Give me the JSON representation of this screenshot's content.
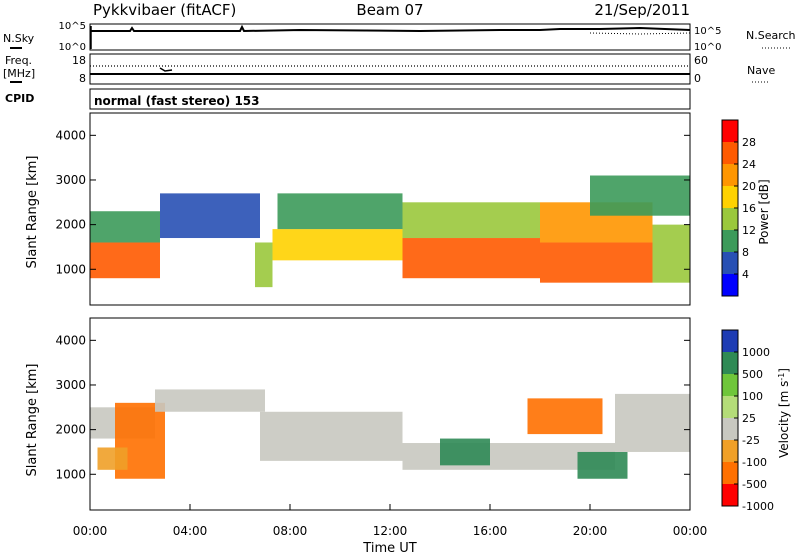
{
  "header": {
    "station": "Pykkvibaer (fitACF)",
    "beam": "Beam 07",
    "date": "21/Sep/2011"
  },
  "top_panels": {
    "nsky_label": "N.Sky",
    "nsky_ticks": [
      "10^5",
      "10^0"
    ],
    "nsearch_label": "N.Search",
    "nsearch_ticks": [
      "10^5",
      "10^0"
    ],
    "freq_label_1": "Freq.",
    "freq_label_2": "[MHz]",
    "freq_ticks": [
      "18",
      "8"
    ],
    "nave_label": "Nave",
    "nave_ticks": [
      "60",
      "0"
    ],
    "cpid_label": "CPID",
    "cpid_text": "normal (fast stereo) 153"
  },
  "chart_data": [
    {
      "type": "heatmap",
      "name": "power",
      "ylabel": "Slant Range [km]",
      "xlabel": "",
      "ylim": [
        200,
        4500
      ],
      "xlim": [
        0,
        24
      ],
      "yticks": [
        1000,
        2000,
        3000,
        4000
      ],
      "colorbar": {
        "label": "Power [dB]",
        "ticks": [
          "28",
          "24",
          "20",
          "16",
          "12",
          "8",
          "4"
        ],
        "colors": [
          "#ff0000",
          "#ff5a00",
          "#ff9600",
          "#ffd200",
          "#9ac83c",
          "#3c9a5a",
          "#2850b4",
          "#0000ff"
        ],
        "range": [
          0,
          32
        ]
      },
      "regions": [
        {
          "t0": 0.0,
          "t1": 2.8,
          "r0": 800,
          "r1": 1600,
          "value": 27
        },
        {
          "t0": 0.0,
          "t1": 2.8,
          "r0": 1600,
          "r1": 2300,
          "value": 12
        },
        {
          "t0": 2.8,
          "t1": 6.8,
          "r0": 1700,
          "r1": 2700,
          "value": 8
        },
        {
          "t0": 6.6,
          "t1": 7.3,
          "r0": 600,
          "r1": 1600,
          "value": 14
        },
        {
          "t0": 7.3,
          "t1": 12.5,
          "r0": 1200,
          "r1": 1900,
          "value": 18
        },
        {
          "t0": 7.5,
          "t1": 12.5,
          "r0": 1900,
          "r1": 2700,
          "value": 11
        },
        {
          "t0": 12.5,
          "t1": 18.0,
          "r0": 800,
          "r1": 1700,
          "value": 26
        },
        {
          "t0": 12.5,
          "t1": 18.0,
          "r0": 1700,
          "r1": 2500,
          "value": 14
        },
        {
          "t0": 18.0,
          "t1": 22.5,
          "r0": 700,
          "r1": 1600,
          "value": 25
        },
        {
          "t0": 18.0,
          "t1": 22.5,
          "r0": 1600,
          "r1": 2500,
          "value": 22
        },
        {
          "t0": 20.0,
          "t1": 24.0,
          "r0": 2200,
          "r1": 3100,
          "value": 11
        },
        {
          "t0": 22.5,
          "t1": 24.0,
          "r0": 700,
          "r1": 2000,
          "value": 16
        }
      ]
    },
    {
      "type": "heatmap",
      "name": "velocity",
      "ylabel": "Slant Range [km]",
      "xlabel": "Time UT",
      "ylim": [
        200,
        4500
      ],
      "xlim": [
        0,
        24
      ],
      "yticks": [
        1000,
        2000,
        3000,
        4000
      ],
      "xticks": [
        "00:00",
        "04:00",
        "08:00",
        "12:00",
        "16:00",
        "20:00",
        "00:00"
      ],
      "colorbar": {
        "label": "Velocity [m s^-1]",
        "ticks": [
          "1000",
          "500",
          "100",
          "25",
          "-25",
          "-100",
          "-500",
          "-1000"
        ],
        "colors": [
          "#1e3cb4",
          "#2f8a55",
          "#6fc63a",
          "#b4dc78",
          "#c8c8c0",
          "#f0a028",
          "#ff7000",
          "#ff0000"
        ]
      },
      "regions": [
        {
          "t0": 0.0,
          "t1": 2.6,
          "r0": 1800,
          "r1": 2500,
          "value": "gs"
        },
        {
          "t0": 1.0,
          "t1": 3.0,
          "r0": 900,
          "r1": 2600,
          "value": -500
        },
        {
          "t0": 0.3,
          "t1": 1.5,
          "r0": 1100,
          "r1": 1600,
          "value": -100
        },
        {
          "t0": 2.6,
          "t1": 7.0,
          "r0": 2400,
          "r1": 2900,
          "value": "gs"
        },
        {
          "t0": 6.8,
          "t1": 12.5,
          "r0": 1300,
          "r1": 2400,
          "value": "gs"
        },
        {
          "t0": 12.5,
          "t1": 21.0,
          "r0": 1100,
          "r1": 1700,
          "value": "gs"
        },
        {
          "t0": 14.0,
          "t1": 16.0,
          "r0": 1200,
          "r1": 1800,
          "value": 500
        },
        {
          "t0": 19.5,
          "t1": 21.5,
          "r0": 900,
          "r1": 1500,
          "value": 500
        },
        {
          "t0": 17.5,
          "t1": 20.5,
          "r0": 1900,
          "r1": 2700,
          "value": -500
        },
        {
          "t0": 21.0,
          "t1": 24.0,
          "r0": 1500,
          "r1": 2800,
          "value": "gs"
        }
      ]
    }
  ]
}
